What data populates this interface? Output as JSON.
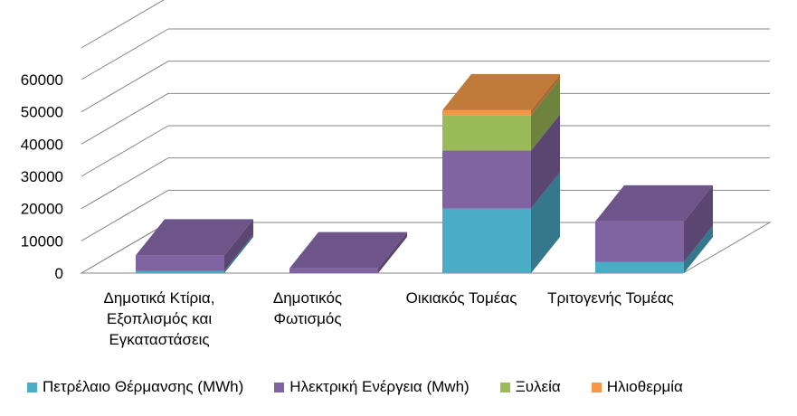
{
  "chart_data": {
    "type": "bar",
    "subtype": "stacked-3d",
    "title": "",
    "xlabel": "",
    "ylabel": "",
    "ylim": [
      0,
      60000
    ],
    "yticks": [
      0,
      10000,
      20000,
      30000,
      40000,
      50000,
      60000
    ],
    "grid": true,
    "legend_position": "bottom",
    "categories": [
      [
        "Δημοτικά Κτίρια,",
        "Εξοπλισμός και",
        "Εγκαταστάσεις"
      ],
      [
        "Δημοτικός",
        "Φωτισμός"
      ],
      [
        "Οικιακός Τομέας"
      ],
      [
        "Τριτογενής Τομέας"
      ]
    ],
    "series": [
      {
        "name": "Πετρέλαιο Θέρμανσης (MWh)",
        "color": "#4bacc6",
        "values": [
          700,
          0,
          20000,
          3500
        ]
      },
      {
        "name": "Ηλεκτρική Ενέργεια (Mwh)",
        "color": "#8064a2",
        "values": [
          4800,
          1500,
          18000,
          12500
        ]
      },
      {
        "name": "Ξυλεία",
        "color": "#9bbb59",
        "values": [
          0,
          0,
          11000,
          0
        ]
      },
      {
        "name": "Ηλιοθερμία",
        "color": "#f79646",
        "values": [
          0,
          0,
          1500,
          0
        ]
      }
    ]
  }
}
